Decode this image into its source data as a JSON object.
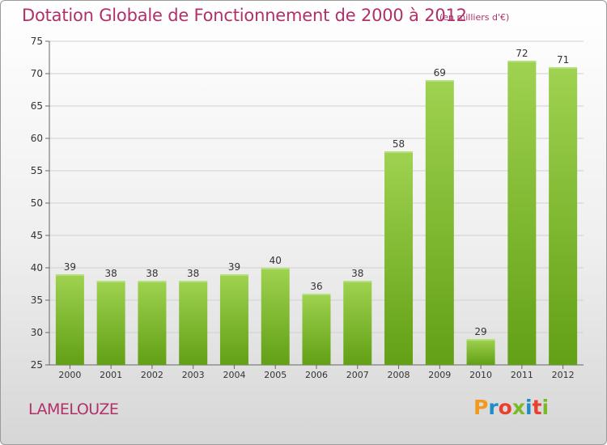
{
  "header": {
    "title": "Dotation Globale de Fonctionnement de 2000 à 2012",
    "unit": "(en milliers d'€)"
  },
  "footer": {
    "commune": "LAMELOUZE",
    "logo_text": "Proxiti"
  },
  "colors": {
    "bar_light": "#9fd250",
    "bar_dark": "#62a015",
    "title": "#b0306a",
    "grid": "#d0d0d0",
    "logo_letters": [
      "#f39a1e",
      "#1f8dc8",
      "#e8412f",
      "#7bb928",
      "#1f8dc8",
      "#e8412f",
      "#7bb928"
    ]
  },
  "chart_data": {
    "type": "bar",
    "title": "Dotation Globale de Fonctionnement de 2000 à 2012",
    "subtitle": "(en milliers d'€)",
    "xlabel": "",
    "ylabel": "",
    "categories": [
      "2000",
      "2001",
      "2002",
      "2003",
      "2004",
      "2005",
      "2006",
      "2007",
      "2008",
      "2009",
      "2010",
      "2011",
      "2012"
    ],
    "values": [
      39,
      38,
      38,
      38,
      39,
      40,
      36,
      38,
      58,
      69,
      29,
      72,
      71
    ],
    "ylim": [
      25,
      75
    ],
    "yticks": [
      25,
      30,
      35,
      40,
      45,
      50,
      55,
      60,
      65,
      70,
      75
    ],
    "grid": true,
    "data_labels": true
  }
}
